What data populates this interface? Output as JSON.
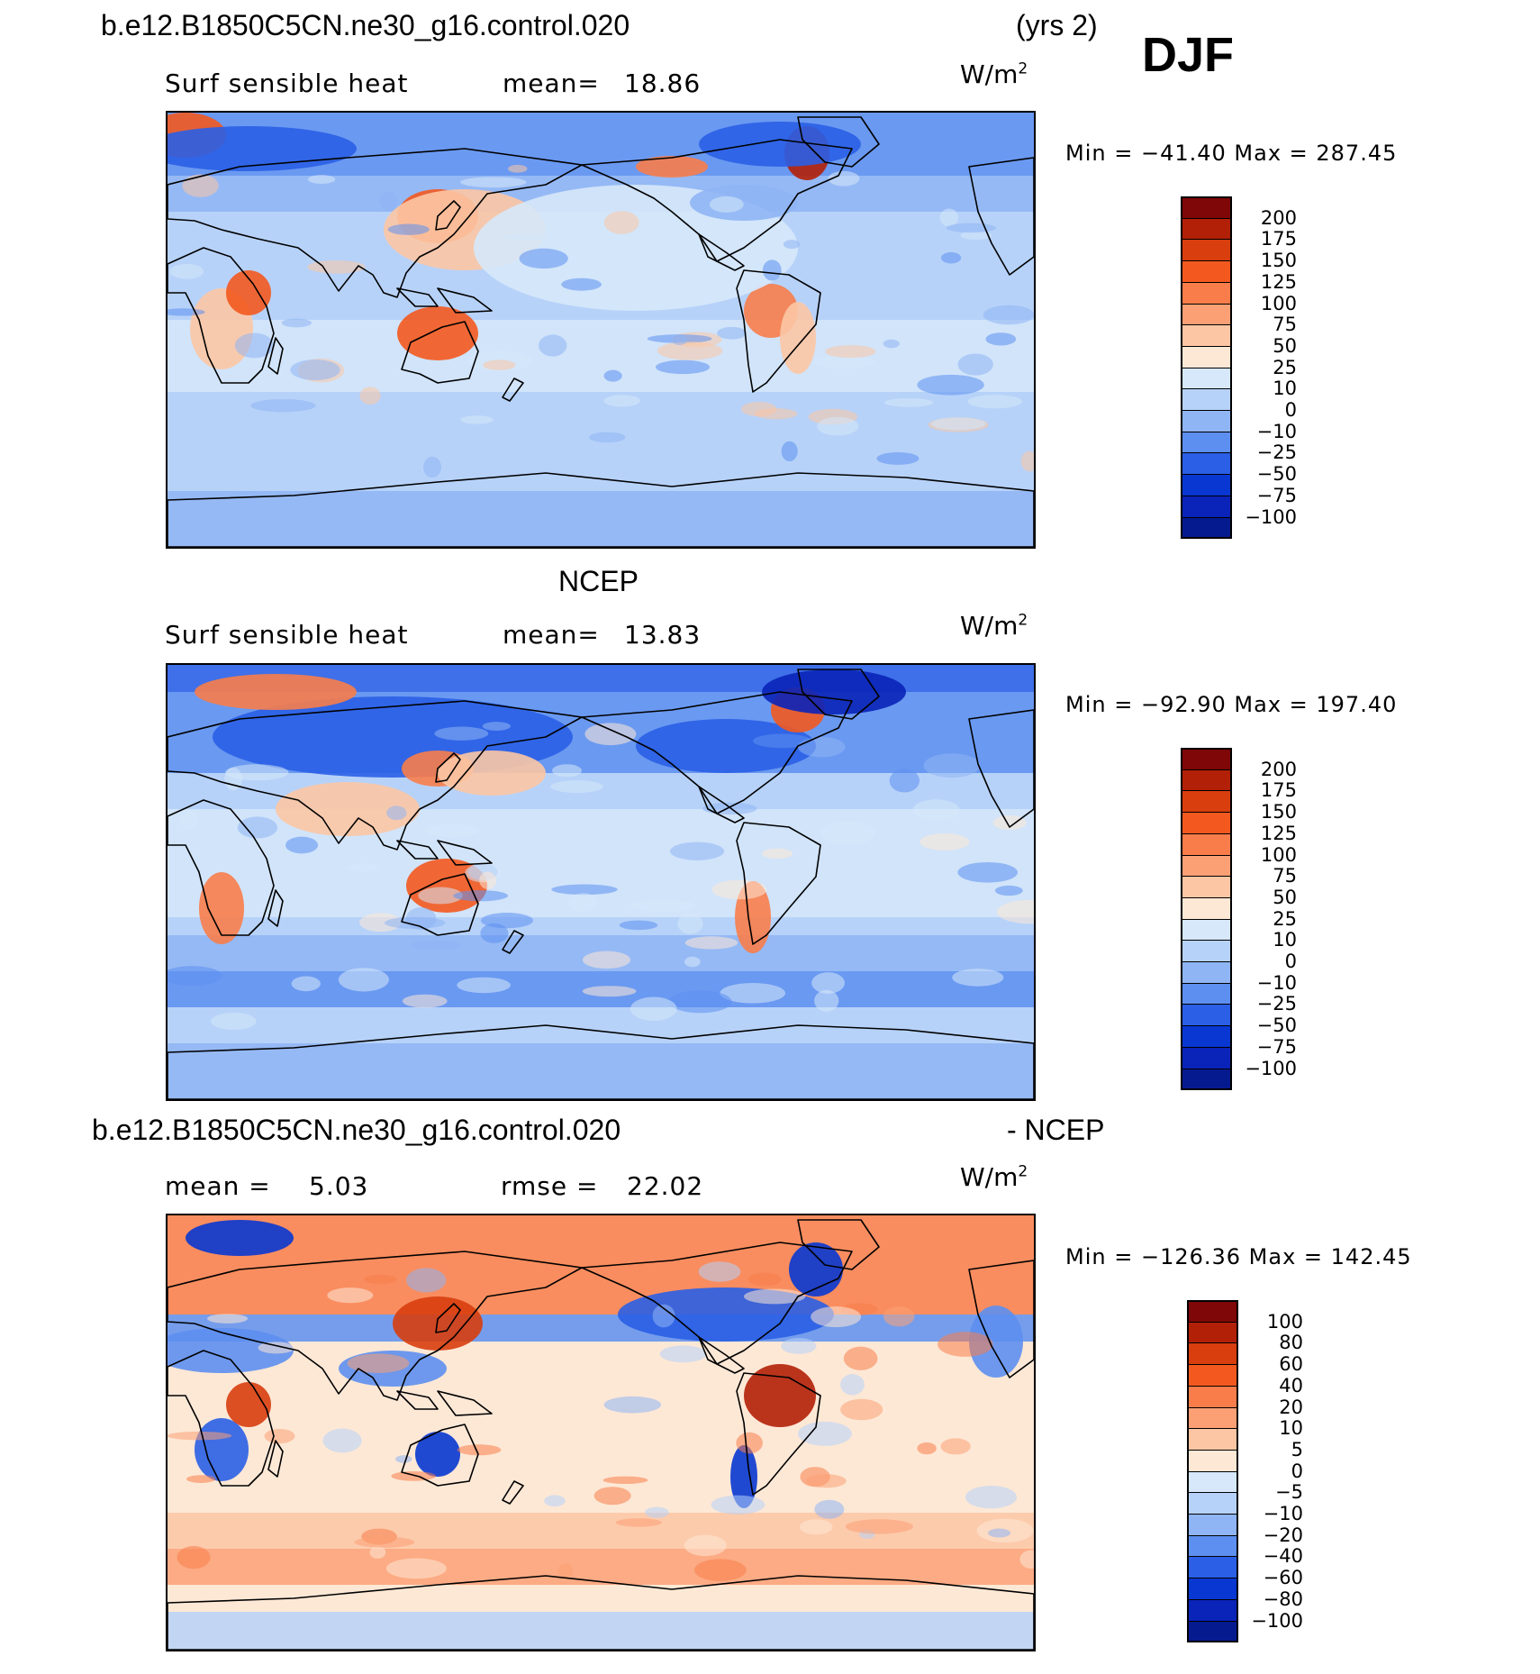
{
  "case_name": "b.e12.B1850C5CN.ne30_g16.control.020",
  "years": "(yrs 2)",
  "season": "DJF",
  "panels": [
    {
      "id": "model",
      "variable": "Surf sensible heat",
      "mean_label": "mean=",
      "mean_value": "18.86",
      "units": "W/m",
      "units_exp": "2",
      "min_max": "Min = −41.40 Max = 287.45",
      "levels": [
        "200",
        "175",
        "150",
        "125",
        "100",
        "75",
        "50",
        "25",
        "10",
        "0",
        "−10",
        "−25",
        "−50",
        "−75",
        "−100"
      ],
      "colors": [
        "#7f0707",
        "#b22008",
        "#d83e0e",
        "#f3591f",
        "#f87d4a",
        "#fba075",
        "#fcc6a4",
        "#fde8d6",
        "#d6e8fa",
        "#b7d2f9",
        "#8fb5f4",
        "#5d8ff0",
        "#2a5fe6",
        "#0837d2",
        "#0a23b8",
        "#061a8f"
      ]
    },
    {
      "id": "obs",
      "title": "NCEP",
      "variable": "Surf sensible heat",
      "mean_label": "mean=",
      "mean_value": "13.83",
      "units": "W/m",
      "units_exp": "2",
      "min_max": "Min = −92.90 Max = 197.40",
      "levels": [
        "200",
        "175",
        "150",
        "125",
        "100",
        "75",
        "50",
        "25",
        "10",
        "0",
        "−10",
        "−25",
        "−50",
        "−75",
        "−100"
      ],
      "colors": [
        "#7f0707",
        "#b22008",
        "#d83e0e",
        "#f3591f",
        "#f87d4a",
        "#fba075",
        "#fcc6a4",
        "#fde8d6",
        "#d6e8fa",
        "#b7d2f9",
        "#8fb5f4",
        "#5d8ff0",
        "#2a5fe6",
        "#0837d2",
        "#0a23b8",
        "#061a8f"
      ]
    },
    {
      "id": "diff",
      "title_left": "b.e12.B1850C5CN.ne30_g16.control.020",
      "title_right": "- NCEP",
      "mean_label": "mean =",
      "mean_value": "5.03",
      "rmse_label": "rmse =",
      "rmse_value": "22.02",
      "units": "W/m",
      "units_exp": "2",
      "min_max": "Min = −126.36 Max = 142.45",
      "levels": [
        "100",
        "80",
        "60",
        "40",
        "20",
        "10",
        "5",
        "0",
        "−5",
        "−10",
        "−20",
        "−40",
        "−60",
        "−80",
        "−100"
      ],
      "colors": [
        "#7f0707",
        "#b22008",
        "#d83e0e",
        "#f3591f",
        "#f87d4a",
        "#fba075",
        "#fcc6a4",
        "#fde8d6",
        "#d6e8fa",
        "#b7d2f9",
        "#8fb5f4",
        "#5d8ff0",
        "#2a5fe6",
        "#0837d2",
        "#0a23b8",
        "#061a8f"
      ]
    }
  ]
}
